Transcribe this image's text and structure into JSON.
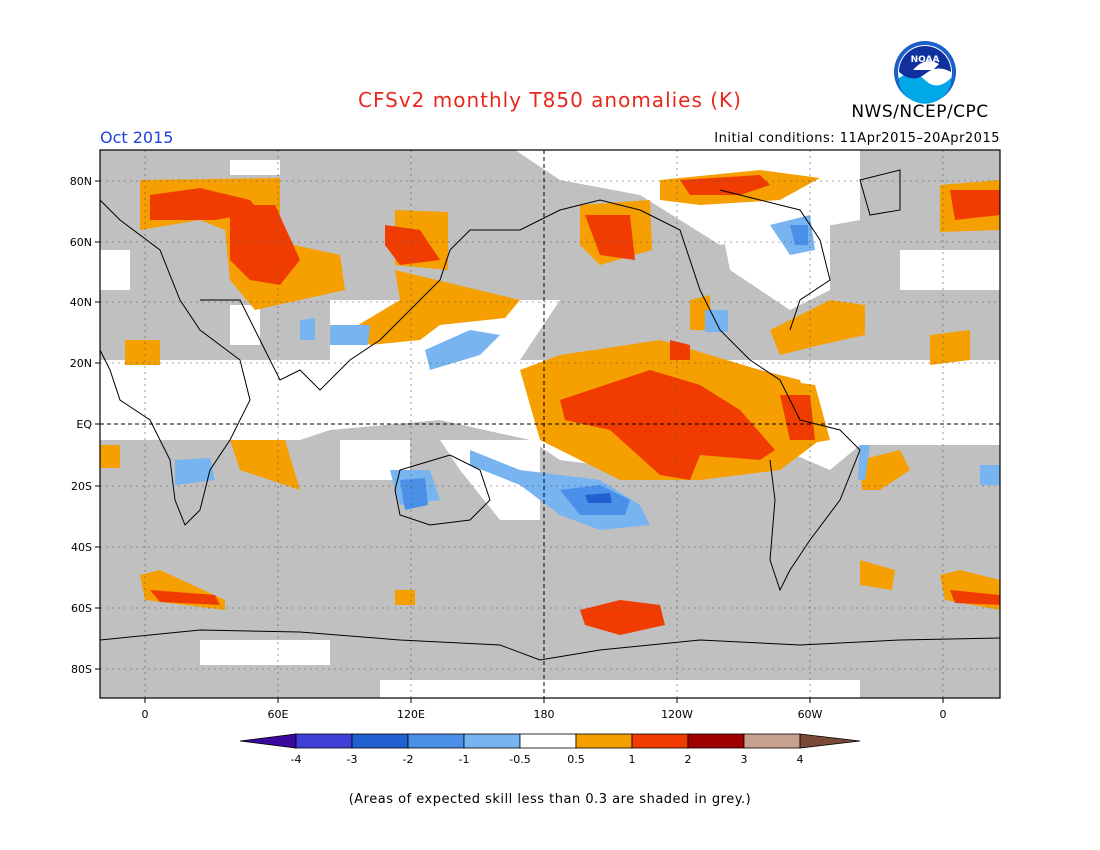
{
  "title": "CFSv2 monthly T850 anomalies (K)",
  "agency": "NWS/NCEP/CPC",
  "logo_text": "NOAA",
  "valid_month": "Oct 2015",
  "initial_conditions": "Initial conditions: 11Apr2015–20Apr2015",
  "footnote": "(Areas of expected skill less than 0.3 are shaded in grey.)",
  "map": {
    "lat_labels": [
      "80N",
      "60N",
      "40N",
      "20N",
      "EQ",
      "20S",
      "40S",
      "60S",
      "80S"
    ],
    "lon_labels": [
      "0",
      "60E",
      "120E",
      "180",
      "120W",
      "60W",
      "0"
    ],
    "colors": {
      "skill_grey": "#c0c0c0",
      "neg_0_5_to_1": "#78b4f0",
      "neg_1_to_2": "#4a90e8",
      "neg_2_to_3": "#2060d0",
      "pos_0_5_to_1": "#f5a000",
      "pos_1_to_2": "#f03c00",
      "pos_2_to_3": "#a00000"
    }
  },
  "colorbar": {
    "labels": [
      "-4",
      "-3",
      "-2",
      "-1",
      "-0.5",
      "0.5",
      "1",
      "2",
      "3",
      "4"
    ],
    "colors": [
      "#3a0aa0",
      "#4040d8",
      "#2060d0",
      "#4a90e8",
      "#78b4f0",
      "#ffffff",
      "#f5a000",
      "#f03c00",
      "#a00000",
      "#c8a090",
      "#7a4a38"
    ]
  }
}
